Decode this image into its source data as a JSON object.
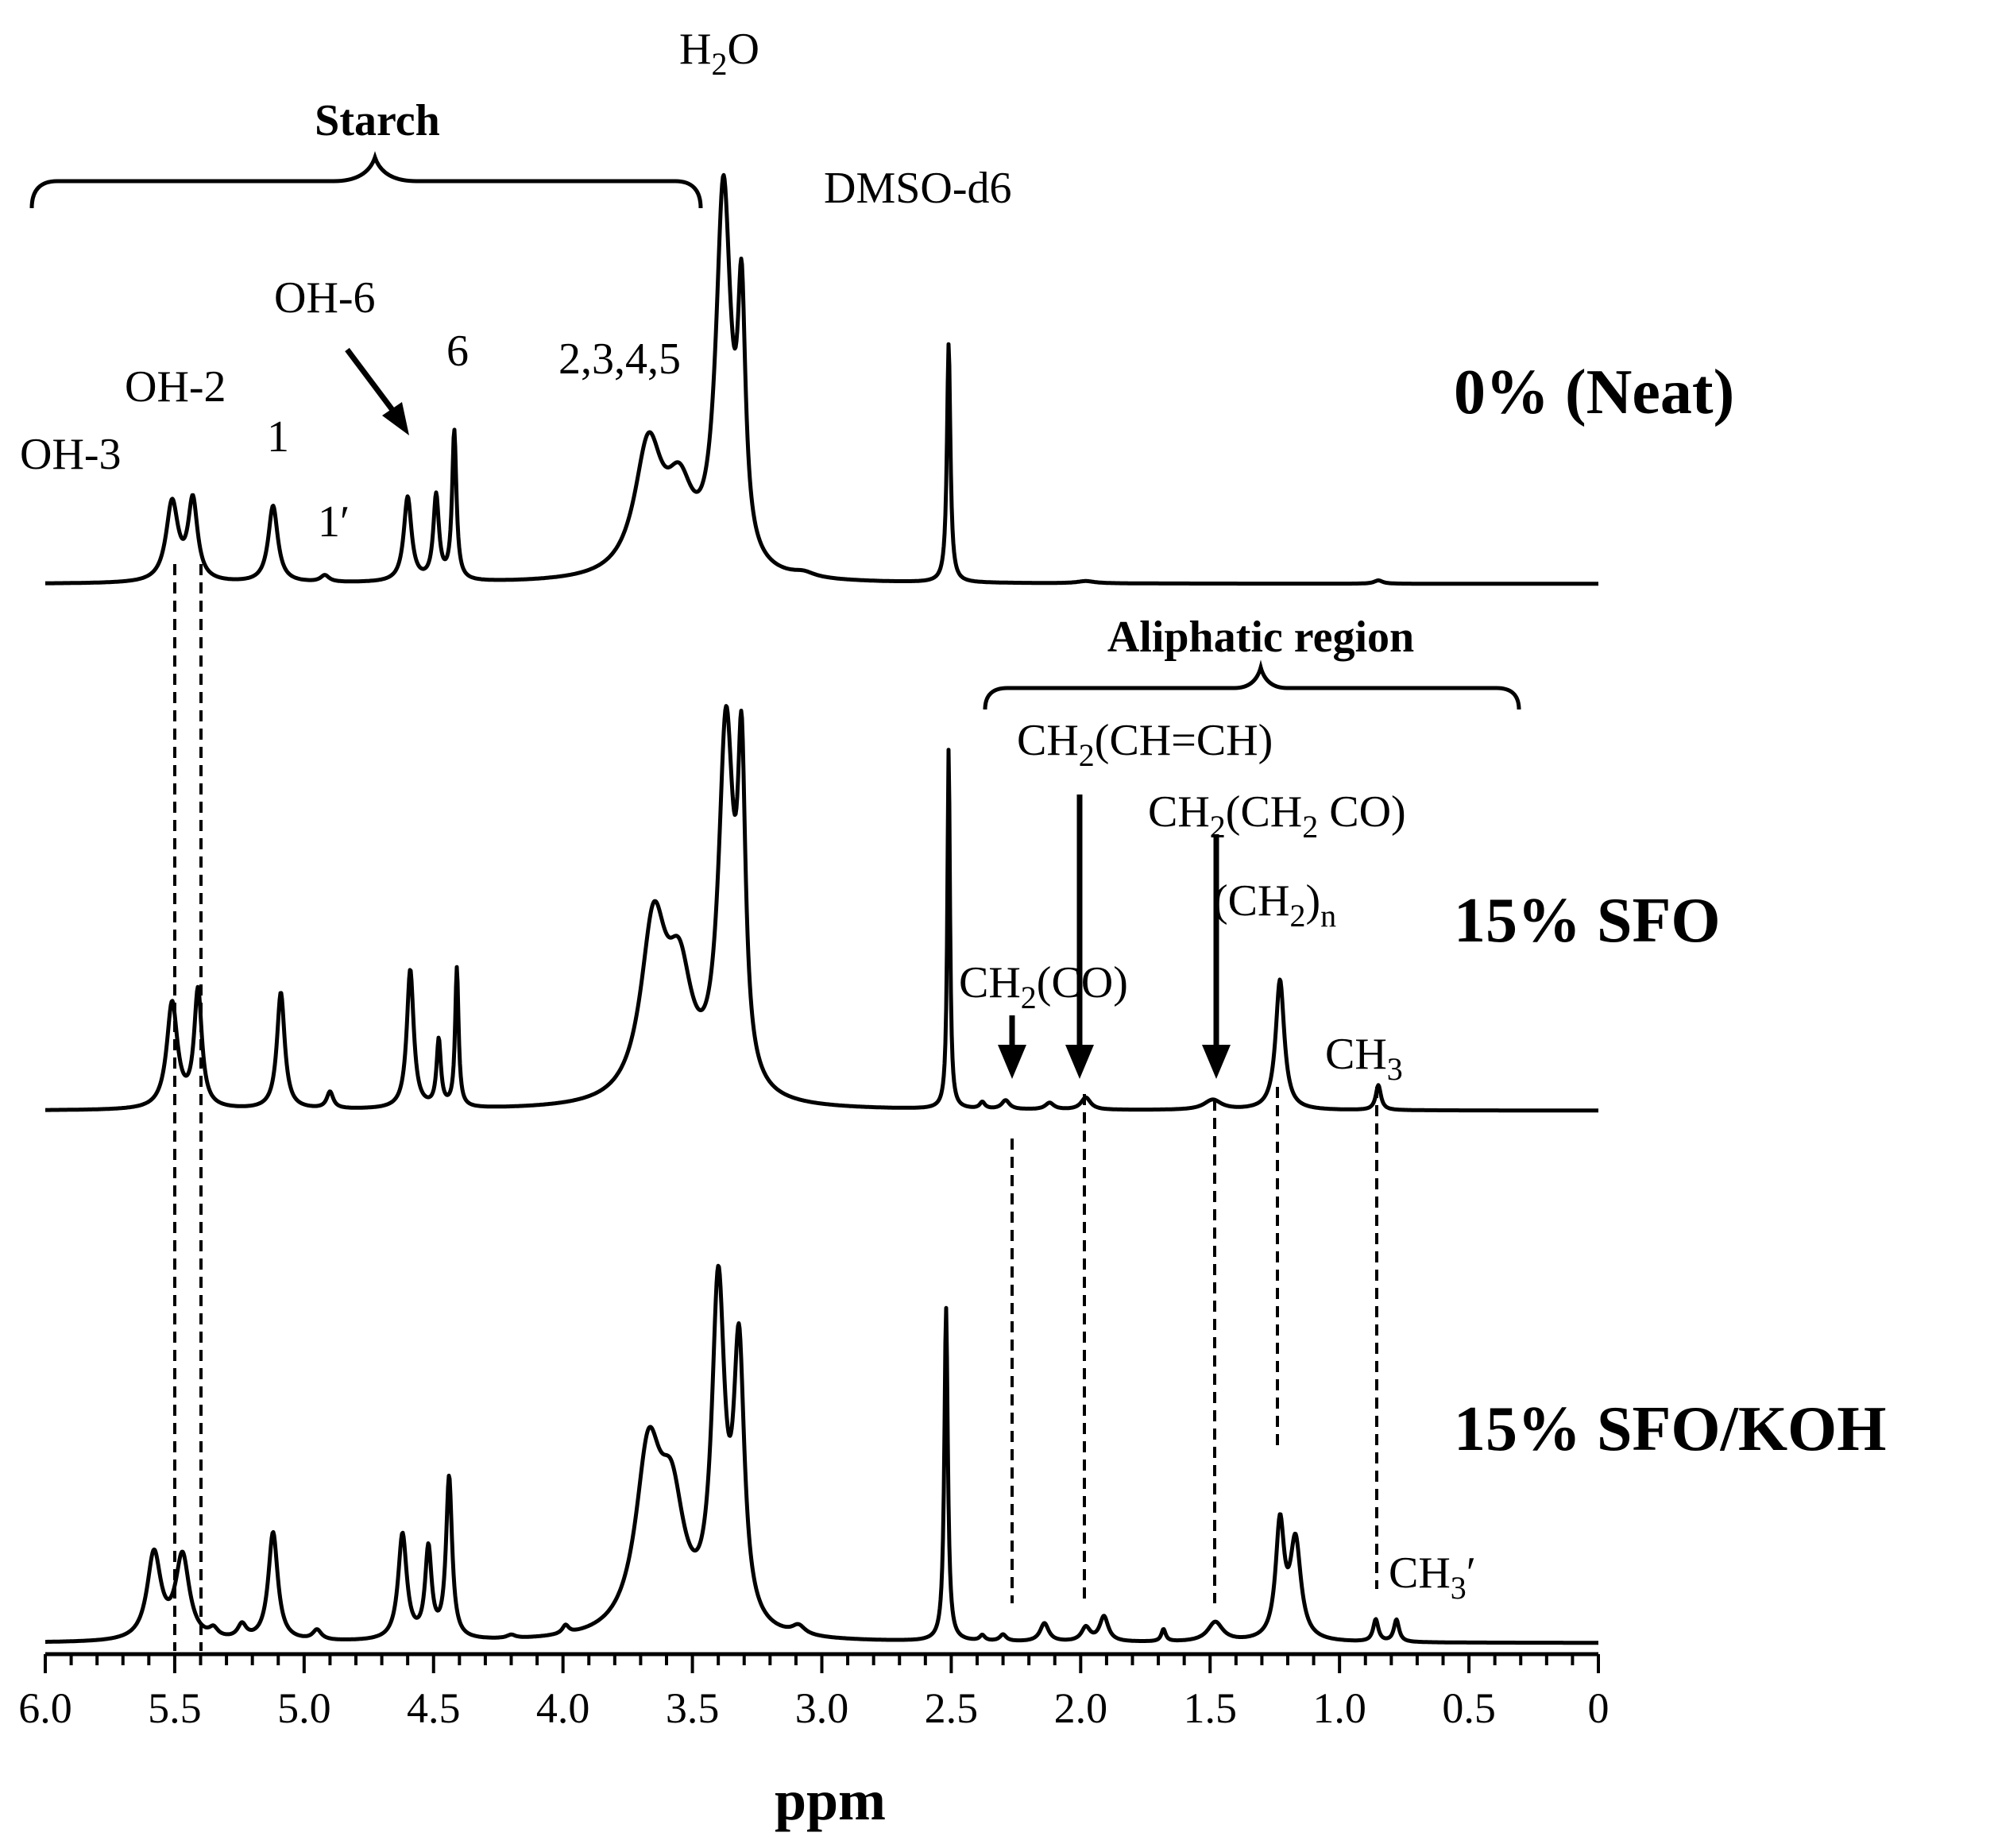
{
  "chart_data": {
    "type": "line",
    "title": "",
    "xlabel": "ppm",
    "ylabel": "",
    "xlim": [
      6.0,
      0
    ],
    "x_direction": "reversed",
    "xticks": [
      "6.0",
      "5.5",
      "5.0",
      "4.5",
      "4.0",
      "3.5",
      "3.0",
      "2.5",
      "2.0",
      "1.5",
      "1.0",
      "0.5",
      "0"
    ],
    "grid": false,
    "series": [
      {
        "name": "0% (Neat)",
        "peaks": [
          {
            "ppm": 5.51,
            "h": 0.142,
            "w": 0.028
          },
          {
            "ppm": 5.43,
            "h": 0.143,
            "w": 0.022
          },
          {
            "ppm": 5.12,
            "h": 0.138,
            "w": 0.022
          },
          {
            "ppm": 4.92,
            "h": 0.012,
            "w": 0.02
          },
          {
            "ppm": 4.6,
            "h": 0.152,
            "w": 0.018
          },
          {
            "ppm": 4.49,
            "h": 0.152,
            "w": 0.013
          },
          {
            "ppm": 4.42,
            "h": 0.268,
            "w": 0.01
          },
          {
            "ppm": 3.67,
            "h": 0.23,
            "w": 0.065
          },
          {
            "ppm": 3.55,
            "h": 0.135,
            "w": 0.065
          },
          {
            "ppm": 3.38,
            "h": 0.68,
            "w": 0.035
          },
          {
            "ppm": 3.31,
            "h": 0.43,
            "w": 0.018
          },
          {
            "ppm": 3.07,
            "h": 0.008,
            "w": 0.05
          },
          {
            "ppm": 2.51,
            "h": 0.43,
            "w": 0.008
          },
          {
            "ppm": 1.98,
            "h": 0.004,
            "w": 0.04
          },
          {
            "ppm": 0.85,
            "h": 0.006,
            "w": 0.02
          }
        ]
      },
      {
        "name": "15% SFO",
        "peaks": [
          {
            "ppm": 5.51,
            "h": 0.19,
            "w": 0.025
          },
          {
            "ppm": 5.41,
            "h": 0.21,
            "w": 0.018
          },
          {
            "ppm": 5.09,
            "h": 0.21,
            "w": 0.018
          },
          {
            "ppm": 4.9,
            "h": 0.03,
            "w": 0.015
          },
          {
            "ppm": 4.59,
            "h": 0.25,
            "w": 0.016
          },
          {
            "ppm": 4.48,
            "h": 0.12,
            "w": 0.01
          },
          {
            "ppm": 4.41,
            "h": 0.25,
            "w": 0.008
          },
          {
            "ppm": 3.65,
            "h": 0.31,
            "w": 0.06
          },
          {
            "ppm": 3.55,
            "h": 0.2,
            "w": 0.06
          },
          {
            "ppm": 3.37,
            "h": 0.65,
            "w": 0.035
          },
          {
            "ppm": 3.31,
            "h": 0.53,
            "w": 0.018
          },
          {
            "ppm": 2.51,
            "h": 0.65,
            "w": 0.006
          },
          {
            "ppm": 2.38,
            "h": 0.012,
            "w": 0.012
          },
          {
            "ppm": 2.29,
            "h": 0.016,
            "w": 0.018
          },
          {
            "ppm": 2.12,
            "h": 0.012,
            "w": 0.02
          },
          {
            "ppm": 1.98,
            "h": 0.022,
            "w": 0.022
          },
          {
            "ppm": 1.49,
            "h": 0.018,
            "w": 0.04
          },
          {
            "ppm": 1.23,
            "h": 0.235,
            "w": 0.02
          },
          {
            "ppm": 0.85,
            "h": 0.045,
            "w": 0.012
          }
        ]
      },
      {
        "name": "15% SFO/KOH",
        "peaks": [
          {
            "ppm": 5.58,
            "h": 0.155,
            "w": 0.032
          },
          {
            "ppm": 5.47,
            "h": 0.15,
            "w": 0.032
          },
          {
            "ppm": 5.35,
            "h": 0.015,
            "w": 0.02
          },
          {
            "ppm": 5.24,
            "h": 0.025,
            "w": 0.02
          },
          {
            "ppm": 5.12,
            "h": 0.195,
            "w": 0.022
          },
          {
            "ppm": 4.95,
            "h": 0.018,
            "w": 0.02
          },
          {
            "ppm": 4.62,
            "h": 0.19,
            "w": 0.02
          },
          {
            "ppm": 4.52,
            "h": 0.16,
            "w": 0.015
          },
          {
            "ppm": 4.44,
            "h": 0.29,
            "w": 0.014
          },
          {
            "ppm": 4.2,
            "h": 0.006,
            "w": 0.02
          },
          {
            "ppm": 3.99,
            "h": 0.015,
            "w": 0.015
          },
          {
            "ppm": 3.67,
            "h": 0.31,
            "w": 0.06
          },
          {
            "ppm": 3.58,
            "h": 0.21,
            "w": 0.06
          },
          {
            "ppm": 3.4,
            "h": 0.6,
            "w": 0.03
          },
          {
            "ppm": 3.32,
            "h": 0.48,
            "w": 0.025
          },
          {
            "ppm": 3.09,
            "h": 0.016,
            "w": 0.03
          },
          {
            "ppm": 2.52,
            "h": 0.6,
            "w": 0.008
          },
          {
            "ppm": 2.38,
            "h": 0.01,
            "w": 0.012
          },
          {
            "ppm": 2.3,
            "h": 0.012,
            "w": 0.015
          },
          {
            "ppm": 2.14,
            "h": 0.033,
            "w": 0.02
          },
          {
            "ppm": 1.98,
            "h": 0.025,
            "w": 0.02
          },
          {
            "ppm": 1.91,
            "h": 0.045,
            "w": 0.02
          },
          {
            "ppm": 1.68,
            "h": 0.022,
            "w": 0.01
          },
          {
            "ppm": 1.48,
            "h": 0.035,
            "w": 0.035
          },
          {
            "ppm": 1.23,
            "h": 0.205,
            "w": 0.02
          },
          {
            "ppm": 1.17,
            "h": 0.175,
            "w": 0.025
          },
          {
            "ppm": 0.86,
            "h": 0.04,
            "w": 0.012
          },
          {
            "ppm": 0.78,
            "h": 0.04,
            "w": 0.012
          }
        ]
      }
    ],
    "annotations": {
      "starch": "Starch",
      "aliphatic": "Aliphatic region",
      "h2o": "H",
      "h2o_sub": "2",
      "h2o_end": "O",
      "dmso": "DMSO-d6",
      "oh6": "OH-6",
      "six": "6",
      "h2345": "2,3,4,5",
      "oh2": "OH-2",
      "one": "1",
      "oh3": "OH-3",
      "one_prime": "1′",
      "ch2ch": "CH",
      "ch2ch_sub": "2",
      "ch2ch_end": "(CH=CH)",
      "ch2cho": "CH",
      "ch2cho_sub": "2",
      "ch2cho_mid": "(CH",
      "ch2cho_sub2": "2",
      "ch2cho_end": " CO)",
      "ch2n": "(CH",
      "ch2n_sub": "2",
      "ch2n_end": ")",
      "ch2n_n": "n",
      "ch2co": "CH",
      "ch2co_sub": "2",
      "ch2co_end": "(CO)",
      "ch3": "CH",
      "ch3_sub": "3",
      "ch3p": "CH",
      "ch3p_sub": "3",
      "ch3p_end": "′"
    }
  }
}
